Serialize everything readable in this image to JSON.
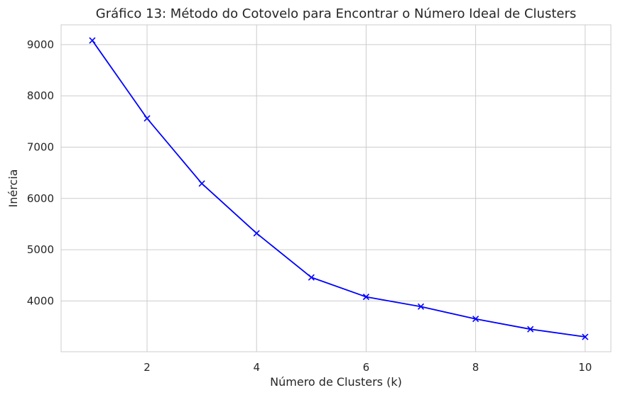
{
  "chart_data": {
    "type": "line",
    "title": "Gráfico 13: Método do Cotovelo para Encontrar o Número Ideal de Clusters",
    "xlabel": "Número de Clusters (k)",
    "ylabel": "Inércia",
    "x": [
      1,
      2,
      3,
      4,
      5,
      6,
      7,
      8,
      9,
      10
    ],
    "series": [
      {
        "values": [
          9080,
          7560,
          6290,
          5320,
          4460,
          4080,
          3890,
          3650,
          3450,
          3300
        ],
        "color": "#0000ff",
        "marker": "x"
      }
    ],
    "xlim": [
      0.43,
      10.47
    ],
    "ylim": [
      3010,
      9385
    ],
    "xticks": [
      2,
      4,
      6,
      8,
      10
    ],
    "xtick_labels": [
      "2",
      "4",
      "6",
      "8",
      "10"
    ],
    "yticks": [
      4000,
      5000,
      6000,
      7000,
      8000,
      9000
    ],
    "ytick_labels": [
      "4000",
      "5000",
      "6000",
      "7000",
      "8000",
      "9000"
    ],
    "grid": true
  }
}
